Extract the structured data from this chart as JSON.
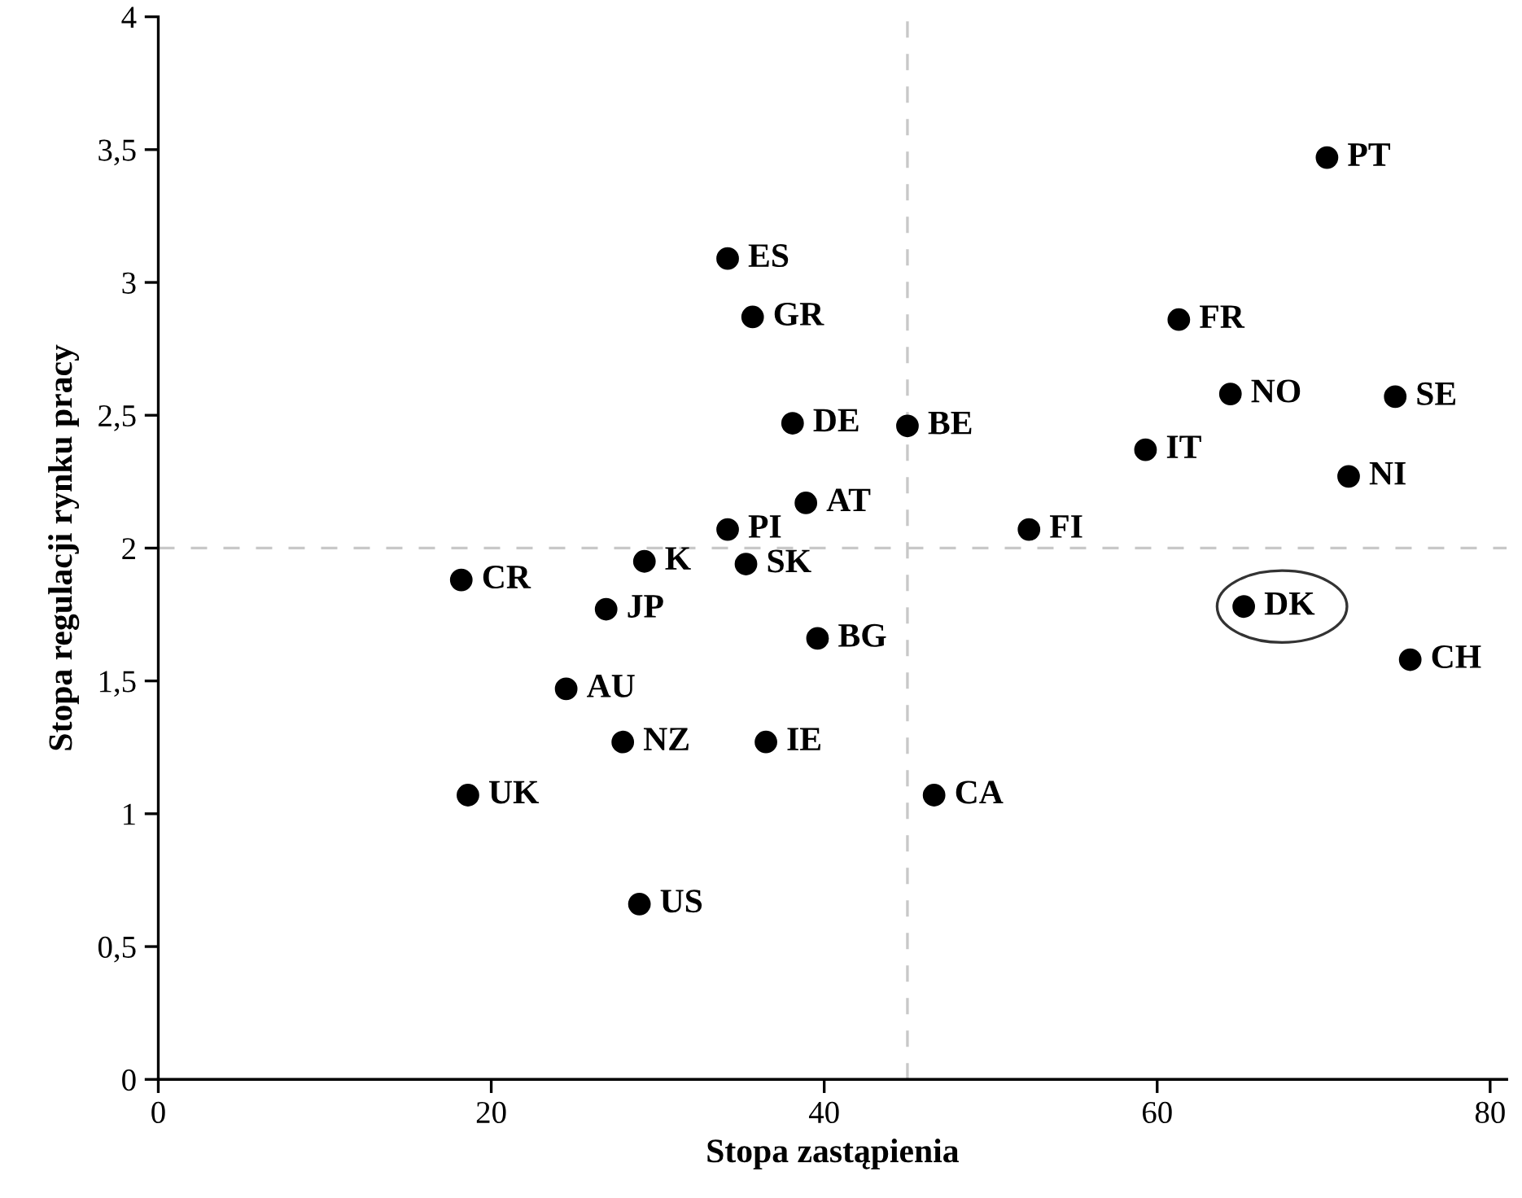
{
  "chart_data": {
    "type": "scatter",
    "xlabel": "Stopa zastąpienia",
    "ylabel": "Stopa regulacji rynku pracy",
    "x": [
      70.2,
      34.2,
      35.7,
      61.3,
      64.4,
      74.3,
      38.1,
      45.0,
      59.3,
      71.5,
      38.9,
      34.2,
      52.3,
      29.2,
      35.3,
      18.2,
      26.9,
      65.2,
      75.2,
      39.6,
      24.5,
      27.9,
      36.5,
      18.6,
      46.6,
      28.9
    ],
    "series": [
      {
        "color": "#000000",
        "values": [
          3.47,
          3.09,
          2.87,
          2.86,
          2.58,
          2.57,
          2.47,
          2.46,
          2.37,
          2.27,
          2.17,
          2.07,
          2.07,
          1.95,
          1.94,
          1.88,
          1.77,
          1.78,
          1.58,
          1.66,
          1.47,
          1.27,
          1.27,
          1.07,
          1.07,
          0.66
        ]
      }
    ],
    "annotations": [
      {
        "text": "PT",
        "x": 70.2,
        "y": 3.47
      },
      {
        "text": "ES",
        "x": 34.2,
        "y": 3.09
      },
      {
        "text": "GR",
        "x": 35.7,
        "y": 2.87
      },
      {
        "text": "FR",
        "x": 61.3,
        "y": 2.86
      },
      {
        "text": "NO",
        "x": 64.4,
        "y": 2.58
      },
      {
        "text": "SE",
        "x": 74.3,
        "y": 2.57
      },
      {
        "text": "DE",
        "x": 38.1,
        "y": 2.47
      },
      {
        "text": "BE",
        "x": 45.0,
        "y": 2.46
      },
      {
        "text": "IT",
        "x": 59.3,
        "y": 2.37
      },
      {
        "text": "NI",
        "x": 71.5,
        "y": 2.27
      },
      {
        "text": "AT",
        "x": 38.9,
        "y": 2.17
      },
      {
        "text": "PI",
        "x": 34.2,
        "y": 2.07
      },
      {
        "text": "FI",
        "x": 52.3,
        "y": 2.07
      },
      {
        "text": "K",
        "x": 29.2,
        "y": 1.95
      },
      {
        "text": "SK",
        "x": 35.3,
        "y": 1.94
      },
      {
        "text": "CR",
        "x": 18.2,
        "y": 1.88
      },
      {
        "text": "JP",
        "x": 26.9,
        "y": 1.77
      },
      {
        "text": "DK",
        "x": 65.2,
        "y": 1.78
      },
      {
        "text": "CH",
        "x": 75.2,
        "y": 1.58
      },
      {
        "text": "BG",
        "x": 39.6,
        "y": 1.66
      },
      {
        "text": "AU",
        "x": 24.5,
        "y": 1.47
      },
      {
        "text": "NZ",
        "x": 27.9,
        "y": 1.27
      },
      {
        "text": "IE",
        "x": 36.5,
        "y": 1.27
      },
      {
        "text": "UK",
        "x": 18.6,
        "y": 1.07
      },
      {
        "text": "CA",
        "x": 46.6,
        "y": 1.07
      },
      {
        "text": "US",
        "x": 28.9,
        "y": 0.66
      }
    ],
    "ref_lines": [
      {
        "axis": "x",
        "value": 45,
        "color": "#c8c8c8",
        "line_style": "dashed"
      },
      {
        "axis": "y",
        "value": 2,
        "color": "#c8c8c8",
        "line_style": "dashed"
      }
    ],
    "xlim": [
      0,
      81
    ],
    "xticks": [
      0,
      20,
      40,
      60,
      80
    ],
    "ylim": [
      0,
      4
    ],
    "yticks": [
      0,
      {
        "value": 0.5,
        "label": "0,5"
      },
      1,
      {
        "value": 1.5,
        "label": "1,5"
      },
      2,
      {
        "value": 2.5,
        "label": "2,5"
      },
      3,
      {
        "value": 3.5,
        "label": "3,5"
      },
      4
    ],
    "grid": false,
    "marker": "circle"
  }
}
